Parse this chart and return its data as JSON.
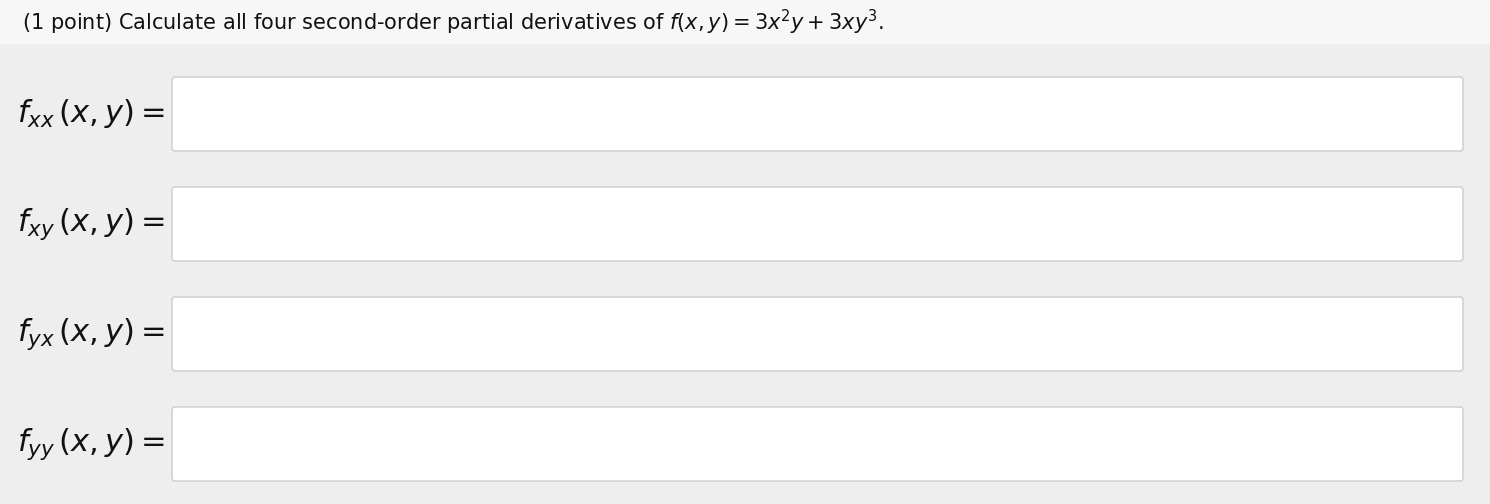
{
  "background_color": "#eeeeee",
  "title_bg_color": "#f5f5f5",
  "title_text_plain": "(1 point) Calculate all four second-order partial derivatives of ",
  "title_math": "f(x, y) = 3x^2y + 3xy^3",
  "title_fontsize": 15,
  "title_color": "#111111",
  "labels": [
    "$f_{xx}\\,(x, y) = $",
    "$f_{xy}\\,(x, y) = $",
    "$f_{yx}\\,(x, y) = $",
    "$f_{yy}\\,(x, y) = $"
  ],
  "label_fontsize": 22,
  "label_color": "#111111",
  "box_fill": "#ffffff",
  "box_edge": "#cccccc",
  "box_edge_width": 1.0,
  "fig_width": 14.9,
  "fig_height": 5.04,
  "dpi": 100
}
